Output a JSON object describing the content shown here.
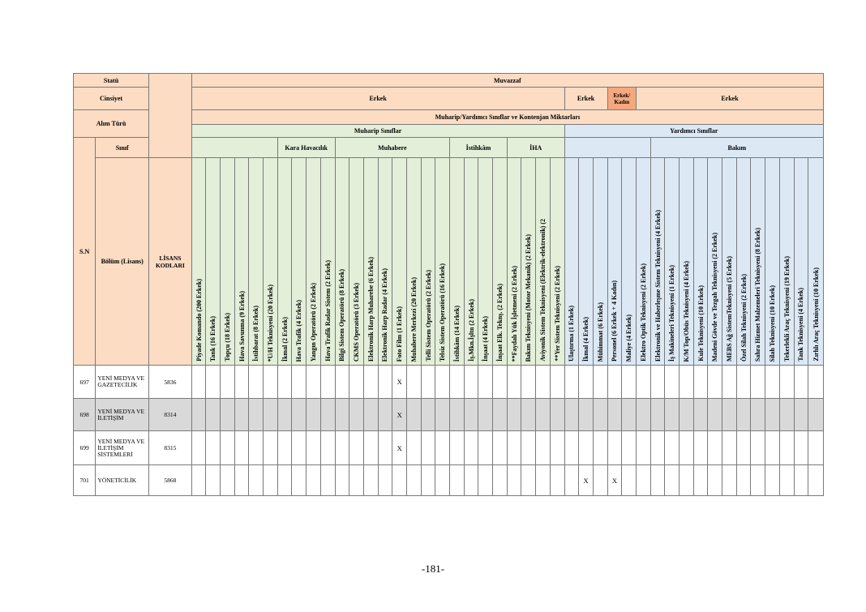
{
  "header": {
    "statu_label": "Statü",
    "statu_value": "Muvazzaf",
    "cinsiyet_label": "Cinsiyet",
    "cinsiyet_erkek_1": "Erkek",
    "cinsiyet_erkek_2": "Erkek",
    "cinsiyet_erkek_kadin": "Erkek/ Kadın",
    "cinsiyet_erkek_3": "Erkek",
    "alim_turu_label": "Alım Türü",
    "alim_turu_value": "Muharip/Yardımcı Sınıflar ve Kontenjan Miktarları",
    "muharip_label": "Muharip Sınıflar",
    "yardimci_label": "Yardımcı Sınıflar",
    "sinif_label": "Sınıf",
    "kara_havacilik_label": "Kara Havacılık",
    "muhabere_label": "Muhabere",
    "istihkam_label": "İstihkâm",
    "iha_label": "İHA",
    "bakim_label": "Bakım",
    "sn_label": "S.N",
    "bolum_label": "Bölüm (Lisans)",
    "lisans_kodlari_label": "LİSANS KODLARI"
  },
  "columns": [
    "Piyade Komando (200 Erkek)",
    "Tank (16 Erkek)",
    "Topçu (18 Erkek)",
    "Hava Savunma (9 Erkek)",
    "İstihbarat (8 Erkek)",
    "*U/H Teknisyeni (20 Erkek)",
    "İkmal (2 Erkek)",
    "Hava Trafik (4 Erkek)",
    "Yangın Operatörü (2 Erkek)",
    "Hava Trafik Radar Sistem (2 Erkek)",
    "Bilgi Sistem Operatörü (8 Erkek)",
    "CKMS Operatörü (3 Erkek)",
    "Elektronik Harp Muharebe (6 Erkek)",
    "Elektronik Harp Radar (4 Erkek)",
    "Foto Film (1 Erkek)",
    "Muhabere Merkezi (20 Erkek)",
    "Telli Sistem Operatörü (2 Erkek)",
    "Telsiz Sistem Operatörü (16 Erkek)",
    "İstihkâm (14 Erkek)",
    "İş.Mkn.İşltn (2 Erkek)",
    "İnşaat (4 Erkek)",
    "İnşaat Elk. Teknş. (2 Erkek)",
    "**Faydalı Yük İşletmeni (2 Erkek)",
    "Bakım Teknisyeni (Motor Mekanik) (2 Erkek)",
    "Aviyonik Sistem Teknisyeni (Elektrik-elektronik) (2",
    "**Yer Sistem Teknisyeni (2 Erkek)",
    "Ulaştırma (1 Erkek)",
    "İkmal (4 Erkek)",
    "Mühimmat (6 Erkek)",
    "Personel (6 Erkek + 4 Kadın)",
    "Maliye (4 Erkek)",
    "Elektro Optik Teknisyeni (2 Erkek)",
    "Elektronik ve Haberleşme Sistem Teknisyeni (4 Erkek)",
    "İş Makineleri Teknisyeni (1 Erkek)",
    "K/M Top/Obüs Teknisyeni (4 Erkek)",
    "Kule Teknisyeni (10 Erkek)",
    "Madeni Gövde ve Tezgah Teknisyeni (2 Erkek)",
    "MEBS Ağ SistemTeknisyeni (5 Erkek)",
    "Özel Silah Teknisyeni (2 Erkek)",
    "Sahra Hizmet Malzemeleri Teknisyeni (8 Erkek)",
    "Silah Teknisyeni (10 Erkek)",
    "Tekerlekli Araç Teknisyeni (19 Erkek)",
    "Tank Teknisyeni (4 Erkek)",
    "Zırhlı Araç Teknisyeni (10 Erkek)"
  ],
  "rows": [
    {
      "sn": "697",
      "bolum": "YENİ MEDYA VE GAZETECİLİK",
      "kod": "5836",
      "marks": [
        14
      ],
      "shade": false
    },
    {
      "sn": "698",
      "bolum": "YENİ MEDYA VE İLETİŞİM",
      "kod": "8314",
      "marks": [
        14
      ],
      "shade": true
    },
    {
      "sn": "699",
      "bolum": "YENİ MEDYA VE İLETİŞİM SİSTEMLERİ",
      "kod": "8315",
      "marks": [
        14
      ],
      "shade": false
    },
    {
      "sn": "701",
      "bolum": "YÖNETİCİLİK",
      "kod": "5868",
      "marks": [
        27,
        29
      ],
      "shade": false
    }
  ],
  "mark_symbol": "X",
  "page_number": "-181-"
}
